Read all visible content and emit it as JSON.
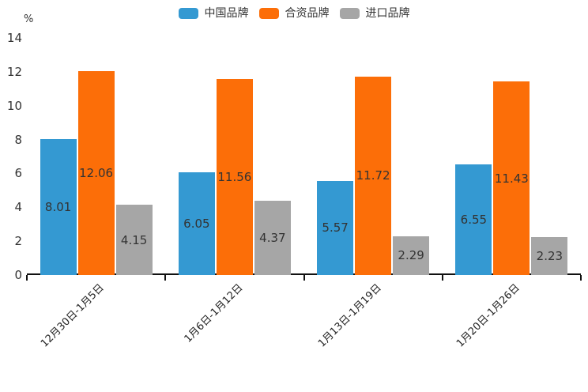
{
  "chart_data": {
    "type": "bar",
    "title": "",
    "y_axis_unit": "%",
    "categories": [
      "12月30日-1月5日",
      "1月6日-1月12日",
      "1月13日-1月19日",
      "1月20日-1月26日"
    ],
    "series": [
      {
        "name": "中国品牌",
        "color": "#3499D2",
        "values": [
          8.01,
          6.05,
          5.57,
          6.55
        ]
      },
      {
        "name": "合资品牌",
        "color": "#FC6E08",
        "values": [
          12.06,
          11.56,
          11.72,
          11.43
        ]
      },
      {
        "name": "进口品牌",
        "color": "#A6A6A6",
        "values": [
          4.15,
          4.37,
          2.29,
          2.23
        ]
      }
    ],
    "ylim": [
      0,
      14
    ],
    "yticks": [
      0,
      2,
      4,
      6,
      8,
      10,
      12,
      14
    ],
    "grid": false,
    "legend_position": "top-center",
    "value_labels": "inside-center",
    "text_color": "#333333",
    "axis_color": "#111111"
  }
}
